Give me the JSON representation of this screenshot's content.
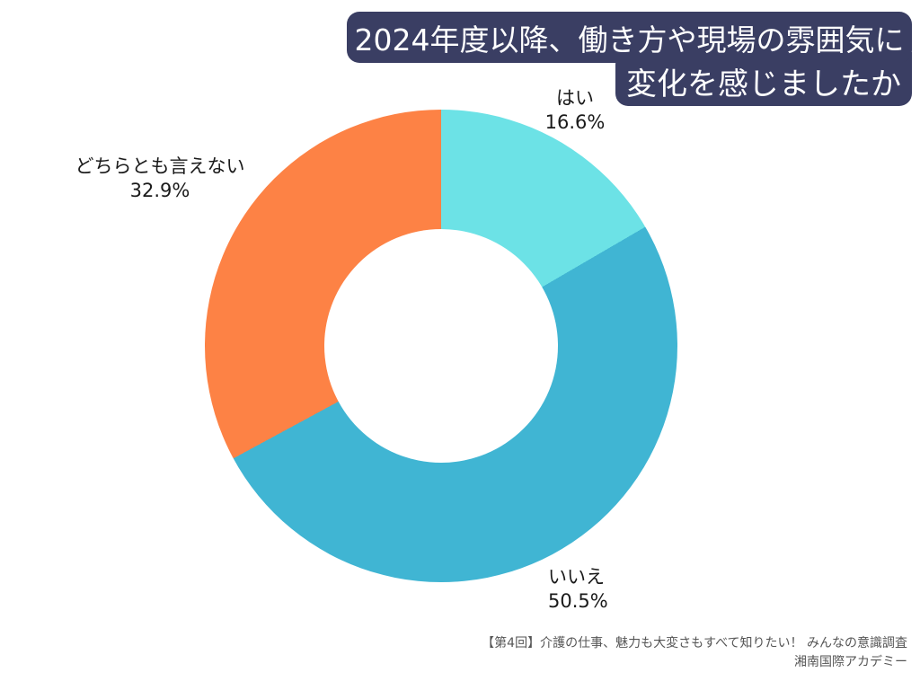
{
  "title": {
    "line1": "2024年度以降、働き方や現場の雰囲気に",
    "line2": "変化を感じましたか",
    "background_color": "#3A3E63",
    "text_color": "#FFFFFF"
  },
  "chart_data": {
    "type": "pie",
    "subtype": "donut",
    "title": "2024年度以降、働き方や現場の雰囲気に変化を感じましたか",
    "start_angle_deg": 0,
    "direction": "clockwise",
    "inner_radius_ratio": 0.494,
    "slices": [
      {
        "label": "はい",
        "value": 16.6,
        "display": "16.6%",
        "color": "#6CE2E6"
      },
      {
        "label": "いいえ",
        "value": 50.5,
        "display": "50.5%",
        "color": "#40B5D3"
      },
      {
        "label": "どちらとも言えない",
        "value": 32.9,
        "display": "32.9%",
        "color": "#FD8245"
      }
    ],
    "legend": "none",
    "labels_position": "outside"
  },
  "labels": {
    "yes": {
      "name": "はい",
      "pct": "16.6%"
    },
    "no": {
      "name": "いいえ",
      "pct": "50.5%"
    },
    "neutral": {
      "name": "どちらとも言えない",
      "pct": "32.9%"
    }
  },
  "footer": {
    "line1": "【第4回】介護の仕事、魅力も大変さもすべて知りたい！ みんなの意識調査",
    "line2": "湘南国際アカデミー",
    "text_color": "#555555"
  }
}
